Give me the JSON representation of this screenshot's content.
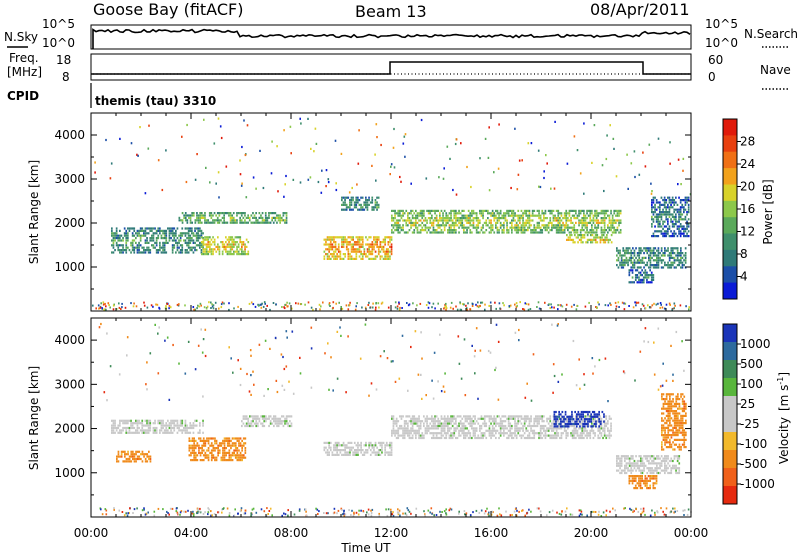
{
  "header": {
    "station": "Goose Bay (fitACF)",
    "beam": "Beam 13",
    "date": "08/Apr/2011"
  },
  "panel_sky": {
    "left_label": "N.Sky",
    "right_label": "N.Search",
    "left_ticks": [
      "10^5",
      "10^0"
    ],
    "right_ticks": [
      "10^5",
      "10^0"
    ]
  },
  "panel_freq": {
    "left_label_line1": "Freq.",
    "left_label_line2": "[MHz]",
    "right_label": "Nave",
    "left_ticks": [
      "18",
      "8"
    ],
    "right_ticks": [
      "60",
      "0"
    ]
  },
  "panel_cpid": {
    "label": "CPID",
    "mode_text": "themis (tau) 3310"
  },
  "chart_data": [
    {
      "type": "heatmap",
      "name": "power",
      "ylabel": "Slant Range [km]",
      "yticks": [
        1000,
        2000,
        3000,
        4000
      ],
      "ylim": [
        0,
        4500
      ],
      "colorbar_label": "Power [dB]",
      "colorbar_ticks": [
        "28",
        "24",
        "20",
        "16",
        "12",
        "8",
        "4"
      ],
      "colorscale": [
        "#0a1bd6",
        "#1c4fa8",
        "#2f7a78",
        "#3f8f6c",
        "#5aa95a",
        "#8cc84a",
        "#d8d22a",
        "#f2a21c",
        "#f07015",
        "#e8400f",
        "#e01a0a"
      ],
      "echo_bands": [
        {
          "t_start": 0.8,
          "t_end": 4.5,
          "range_start": 1350,
          "range_end": 1900,
          "power_db": 10
        },
        {
          "t_start": 3.5,
          "t_end": 7.8,
          "range_start": 2000,
          "range_end": 2250,
          "power_db": 12
        },
        {
          "t_start": 4.4,
          "t_end": 6.3,
          "range_start": 1300,
          "range_end": 1700,
          "power_db": 18
        },
        {
          "t_start": 9.3,
          "t_end": 12.0,
          "range_start": 1200,
          "range_end": 1700,
          "power_db": 22
        },
        {
          "t_start": 10.0,
          "t_end": 11.5,
          "range_start": 2300,
          "range_end": 2600,
          "power_db": 10
        },
        {
          "t_start": 12.0,
          "t_end": 21.2,
          "range_start": 1800,
          "range_end": 2300,
          "power_db": 14
        },
        {
          "t_start": 19.0,
          "t_end": 20.8,
          "range_start": 1550,
          "range_end": 1750,
          "power_db": 18
        },
        {
          "t_start": 21.0,
          "t_end": 23.8,
          "range_start": 1000,
          "range_end": 1450,
          "power_db": 8
        },
        {
          "t_start": 21.5,
          "t_end": 22.5,
          "range_start": 650,
          "range_end": 950,
          "power_db": 6
        },
        {
          "t_start": 22.4,
          "t_end": 23.9,
          "range_start": 1700,
          "range_end": 2600,
          "power_db": 7
        }
      ]
    },
    {
      "type": "heatmap",
      "name": "velocity",
      "ylabel": "Slant Range [km]",
      "yticks": [
        1000,
        2000,
        3000,
        4000
      ],
      "ylim": [
        0,
        4500
      ],
      "colorbar_label_main": "Velocity",
      "colorbar_label_unit": "[m s",
      "colorbar_label_sup": "-1",
      "colorbar_label_end": "]",
      "colorbar_ticks": [
        "1000",
        "500",
        "100",
        "25",
        "-25",
        "-100",
        "-500",
        "-1000"
      ],
      "colorscale": [
        "#1a34b8",
        "#2d6a9e",
        "#3e8a58",
        "#59b63c",
        "#c8c8c8",
        "#c8c8c8",
        "#f2b92b",
        "#f08a1a",
        "#f0601a",
        "#e62a0f"
      ],
      "echo_bands": [
        {
          "t_start": 0.8,
          "t_end": 4.5,
          "range_start": 1900,
          "range_end": 2200,
          "velocity": 0
        },
        {
          "t_start": 1.0,
          "t_end": 2.4,
          "range_start": 1250,
          "range_end": 1500,
          "velocity": -300
        },
        {
          "t_start": 3.9,
          "t_end": 6.2,
          "range_start": 1300,
          "range_end": 1800,
          "velocity": -500
        },
        {
          "t_start": 6.0,
          "t_end": 8.0,
          "range_start": 2050,
          "range_end": 2300,
          "velocity": 0
        },
        {
          "t_start": 9.3,
          "t_end": 12.0,
          "range_start": 1400,
          "range_end": 1700,
          "velocity": 0
        },
        {
          "t_start": 12.0,
          "t_end": 20.8,
          "range_start": 1800,
          "range_end": 2300,
          "velocity": 0
        },
        {
          "t_start": 18.5,
          "t_end": 20.5,
          "range_start": 2050,
          "range_end": 2400,
          "velocity": 600
        },
        {
          "t_start": 21.0,
          "t_end": 23.5,
          "range_start": 1000,
          "range_end": 1400,
          "velocity": 0
        },
        {
          "t_start": 21.5,
          "t_end": 22.6,
          "range_start": 650,
          "range_end": 950,
          "velocity": -150
        },
        {
          "t_start": 22.8,
          "t_end": 23.8,
          "range_start": 1500,
          "range_end": 2800,
          "velocity": -150
        }
      ]
    }
  ],
  "time_axis": {
    "xlabel": "Time UT",
    "ticks": [
      "00:00",
      "04:00",
      "08:00",
      "12:00",
      "16:00",
      "20:00",
      "00:00"
    ],
    "xlim": [
      0,
      24
    ]
  }
}
